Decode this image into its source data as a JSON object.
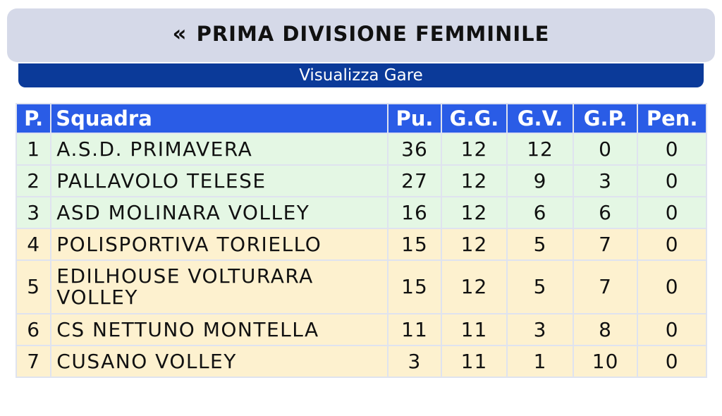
{
  "header": {
    "back_symbol": "«",
    "title": "PRIMA DIVISIONE FEMMINILE"
  },
  "subheader": {
    "link_label": "Visualizza Gare"
  },
  "table": {
    "columns": [
      "P.",
      "Squadra",
      "Pu.",
      "G.G.",
      "G.V.",
      "G.P.",
      "Pen."
    ],
    "rows": [
      {
        "pos": "1",
        "team": "A.S.D. PRIMAVERA",
        "pu": "36",
        "gg": "12",
        "gv": "12",
        "gp": "0",
        "pen": "0",
        "zone": "green"
      },
      {
        "pos": "2",
        "team": "PALLAVOLO TELESE",
        "pu": "27",
        "gg": "12",
        "gv": "9",
        "gp": "3",
        "pen": "0",
        "zone": "green"
      },
      {
        "pos": "3",
        "team": "ASD MOLINARA VOLLEY",
        "pu": "16",
        "gg": "12",
        "gv": "6",
        "gp": "6",
        "pen": "0",
        "zone": "green"
      },
      {
        "pos": "4",
        "team": "POLISPORTIVA TORIELLO",
        "pu": "15",
        "gg": "12",
        "gv": "5",
        "gp": "7",
        "pen": "0",
        "zone": "yellow"
      },
      {
        "pos": "5",
        "team": "EDILHOUSE VOLTURARA VOLLEY",
        "pu": "15",
        "gg": "12",
        "gv": "5",
        "gp": "7",
        "pen": "0",
        "zone": "yellow"
      },
      {
        "pos": "6",
        "team": "CS NETTUNO MONTELLA",
        "pu": "11",
        "gg": "11",
        "gv": "3",
        "gp": "8",
        "pen": "0",
        "zone": "yellow"
      },
      {
        "pos": "7",
        "team": "CUSANO VOLLEY",
        "pu": "3",
        "gg": "11",
        "gv": "1",
        "gp": "10",
        "pen": "0",
        "zone": "yellow"
      }
    ]
  },
  "colors": {
    "title_bg": "#d5d9e8",
    "subheader_bg": "#0b3a99",
    "header_row_bg": "#2a5ce6",
    "green_zone": "#e4f7e4",
    "yellow_zone": "#fdf1cf"
  }
}
